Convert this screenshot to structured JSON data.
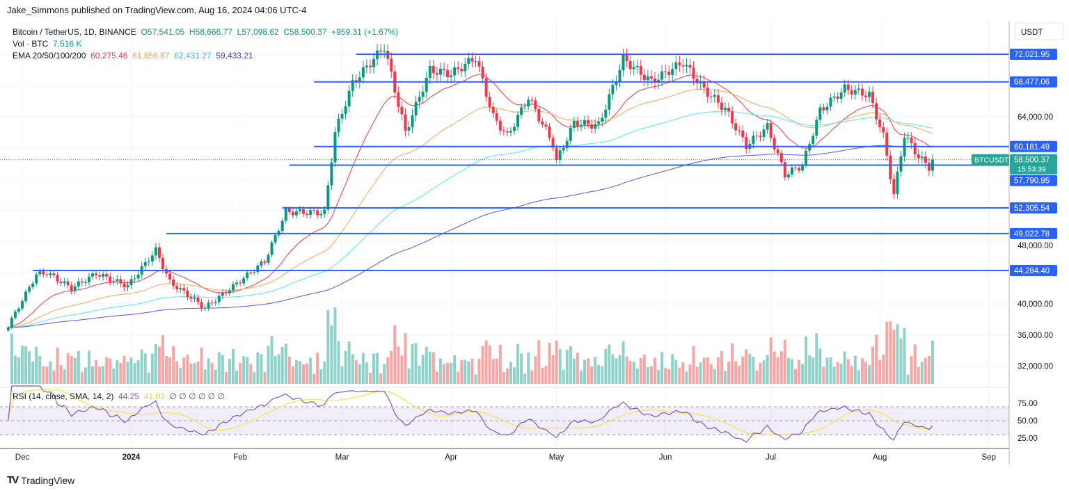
{
  "publisher_line": "Jake_Simmons published on TradingView.com, Aug 16, 2024 04:06 UTC-4",
  "symbol": {
    "title": "Bitcoin / TetherUS, 1D, BINANCE",
    "open": "O57,541.05",
    "high": "H58,666.77",
    "low": "L57,098.62",
    "close": "C58,500.37",
    "change": "+959.31 (+1.67%)",
    "vol_label": "Vol · BTC",
    "vol_value": "7.516 K",
    "ema_label": "EMA 20/50/100/200",
    "ema_values": [
      "60,275.46",
      "61,856.87",
      "62,431.27",
      "59,433.21"
    ]
  },
  "rsi_legend": {
    "label": "RSI (14, close, SMA, 14, 2)",
    "rsi": "44.25",
    "sma": "41.03",
    "extras": [
      "∅",
      "∅",
      "∅",
      "∅",
      "∅",
      "∅"
    ]
  },
  "currency": "USDT",
  "price_ticks": [
    "64,000.00",
    "48,000.00",
    "40,000.00",
    "36,000.00",
    "32,000.00"
  ],
  "rsi_ticks": [
    "75.00",
    "50.00",
    "25.00"
  ],
  "time_ticks": [
    {
      "label": "Dec",
      "date": "2023-12-01"
    },
    {
      "label": "2024",
      "date": "2024-01-01"
    },
    {
      "label": "Feb",
      "date": "2024-02-01"
    },
    {
      "label": "Mar",
      "date": "2024-03-01"
    },
    {
      "label": "Apr",
      "date": "2024-04-01"
    },
    {
      "label": "May",
      "date": "2024-05-01"
    },
    {
      "label": "Jun",
      "date": "2024-06-01"
    },
    {
      "label": "Jul",
      "date": "2024-07-01"
    },
    {
      "label": "Aug",
      "date": "2024-08-01"
    },
    {
      "label": "Sep",
      "date": "2024-09-01"
    }
  ],
  "last_price": {
    "symbol": "BTCUSDT",
    "price": "58,500.37",
    "countdown": "15:53:39"
  },
  "logo_text": "TradingView",
  "colors": {
    "up": "#089981",
    "down": "#f23645",
    "vol_up": "#8fd2c9",
    "vol_down": "#f7a6a6",
    "hline": "#2962ff",
    "ema20": "#f23645",
    "ema50": "#f7a35c",
    "ema100": "#4dedf0",
    "ema200": "#5252f0",
    "rsi": "#7e57c2",
    "rsi_sma": "#f5e342"
  },
  "chart_data": {
    "type": "candlestick",
    "y_range": [
      29500,
      75000
    ],
    "x_range": [
      "2023-11-27",
      "2024-09-05"
    ],
    "grid": true,
    "price_path": [
      [
        "2023-11-27",
        37200
      ],
      [
        "2023-12-05",
        43750
      ],
      [
        "2023-12-08",
        44000
      ],
      [
        "2023-12-15",
        42000
      ],
      [
        "2023-12-22",
        43900
      ],
      [
        "2023-12-31",
        42300
      ],
      [
        "2024-01-08",
        46900
      ],
      [
        "2024-01-12",
        42800
      ],
      [
        "2024-01-22",
        39500
      ],
      [
        "2024-01-31",
        42600
      ],
      [
        "2024-02-08",
        45500
      ],
      [
        "2024-02-14",
        51800
      ],
      [
        "2024-02-25",
        51700
      ],
      [
        "2024-02-28",
        62000
      ],
      [
        "2024-03-04",
        68300
      ],
      [
        "2024-03-13",
        73000
      ],
      [
        "2024-03-19",
        62000
      ],
      [
        "2024-03-26",
        70000
      ],
      [
        "2024-04-01",
        69500
      ],
      [
        "2024-04-08",
        71600
      ],
      [
        "2024-04-13",
        64000
      ],
      [
        "2024-04-17",
        61500
      ],
      [
        "2024-04-23",
        66500
      ],
      [
        "2024-04-30",
        60500
      ],
      [
        "2024-05-01",
        58300
      ],
      [
        "2024-05-06",
        63200
      ],
      [
        "2024-05-13",
        62900
      ],
      [
        "2024-05-20",
        71400
      ],
      [
        "2024-05-28",
        68500
      ],
      [
        "2024-06-06",
        71000
      ],
      [
        "2024-06-12",
        67500
      ],
      [
        "2024-06-18",
        65000
      ],
      [
        "2024-06-24",
        60300
      ],
      [
        "2024-06-30",
        62700
      ],
      [
        "2024-07-05",
        56600
      ],
      [
        "2024-07-10",
        57800
      ],
      [
        "2024-07-15",
        64800
      ],
      [
        "2024-07-22",
        67600
      ],
      [
        "2024-07-29",
        66800
      ],
      [
        "2024-08-02",
        61500
      ],
      [
        "2024-08-05",
        54000
      ],
      [
        "2024-08-08",
        61700
      ],
      [
        "2024-08-12",
        58900
      ],
      [
        "2024-08-15",
        57540
      ],
      [
        "2024-08-16",
        58500
      ]
    ],
    "horizontal_levels": [
      {
        "price": 72021.95,
        "label": "72,021.95",
        "from": "2024-03-05"
      },
      {
        "price": 68477.06,
        "label": "68,477.06",
        "from": "2024-02-22"
      },
      {
        "price": 60181.49,
        "label": "60,181.49",
        "from": "2024-02-22"
      },
      {
        "price": 57790.95,
        "label": "57,790.95",
        "from": "2024-02-15"
      },
      {
        "price": 52305.54,
        "label": "52,305.54",
        "from": "2024-02-13"
      },
      {
        "price": 49022.78,
        "label": "49,022.78",
        "from": "2024-01-11"
      },
      {
        "price": 44284.4,
        "label": "44,284.40",
        "from": "2023-12-04"
      }
    ],
    "ema_periods": [
      20,
      50,
      100,
      200
    ],
    "rsi_levels": [
      75,
      50,
      25
    ]
  }
}
